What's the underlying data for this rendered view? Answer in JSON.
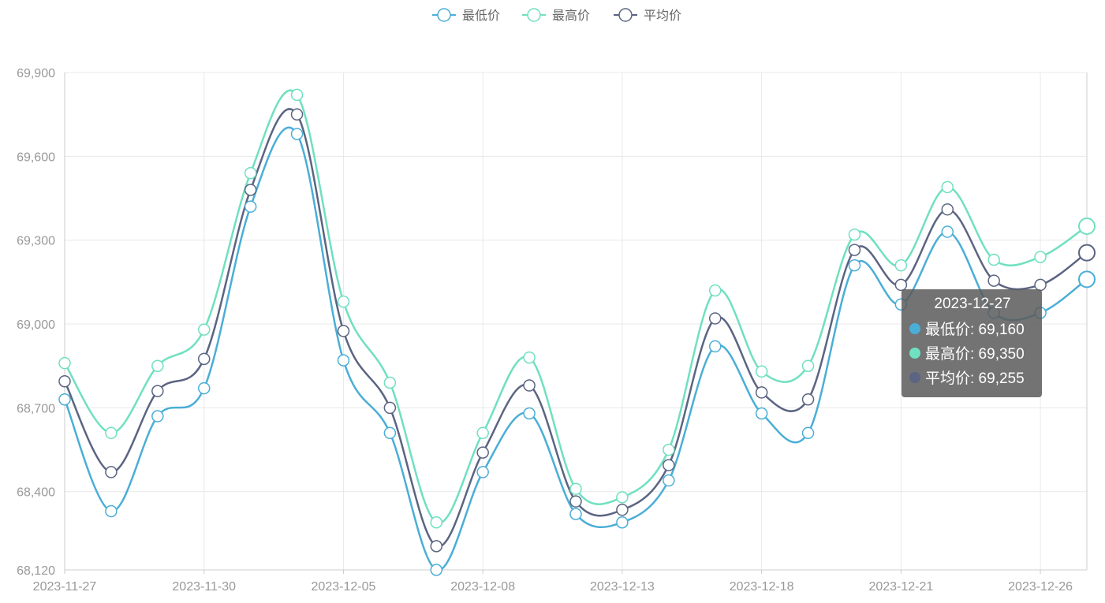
{
  "chart_data": {
    "type": "line",
    "title": "",
    "xlabel": "",
    "ylabel": "",
    "x": [
      "2023-11-27",
      "2023-11-28",
      "2023-11-29",
      "2023-11-30",
      "2023-12-01",
      "2023-12-04",
      "2023-12-05",
      "2023-12-06",
      "2023-12-07",
      "2023-12-08",
      "2023-12-11",
      "2023-12-12",
      "2023-12-13",
      "2023-12-14",
      "2023-12-15",
      "2023-12-18",
      "2023-12-19",
      "2023-12-20",
      "2023-12-21",
      "2023-12-22",
      "2023-12-25",
      "2023-12-26",
      "2023-12-27"
    ],
    "x_tick_labels": [
      "2023-11-27",
      "2023-11-30",
      "2023-12-05",
      "2023-12-08",
      "2023-12-13",
      "2023-12-18",
      "2023-12-21",
      "2023-12-26"
    ],
    "ylim": [
      68120,
      69900
    ],
    "y_ticks": [
      68120,
      68400,
      68700,
      69000,
      69300,
      69600,
      69900
    ],
    "y_tick_labels": [
      "68,120",
      "68,400",
      "68,700",
      "69,000",
      "69,300",
      "69,600",
      "69,900"
    ],
    "grid": true,
    "legend_position": "top-center",
    "series": [
      {
        "name": "最低价",
        "color": "#4aaed6",
        "values": [
          68730,
          68330,
          68670,
          68770,
          69420,
          69680,
          68870,
          68610,
          68120,
          68470,
          68680,
          68320,
          68290,
          68440,
          68920,
          68680,
          68610,
          69210,
          69070,
          69330,
          69040,
          69040,
          69160
        ]
      },
      {
        "name": "最高价",
        "color": "#6fe0c0",
        "values": [
          68860,
          68610,
          68850,
          68980,
          69540,
          69820,
          69080,
          68790,
          68290,
          68610,
          68880,
          68410,
          68380,
          68550,
          69120,
          68830,
          68850,
          69320,
          69210,
          69490,
          69230,
          69240,
          69350
        ]
      },
      {
        "name": "平均价",
        "color": "#5b6482",
        "values": [
          68795,
          68470,
          68760,
          68875,
          69480,
          69750,
          68975,
          68700,
          68205,
          68540,
          68780,
          68365,
          68335,
          68495,
          69020,
          68755,
          68730,
          69265,
          69140,
          69410,
          69155,
          69140,
          69255
        ]
      }
    ]
  },
  "tooltip": {
    "date": "2023-12-27",
    "rows": [
      {
        "text": "最低价: 69,160",
        "color": "#4aaed6"
      },
      {
        "text": "最高价: 69,350",
        "color": "#6fe0c0"
      },
      {
        "text": "平均价: 69,255",
        "color": "#5b6482"
      }
    ]
  }
}
